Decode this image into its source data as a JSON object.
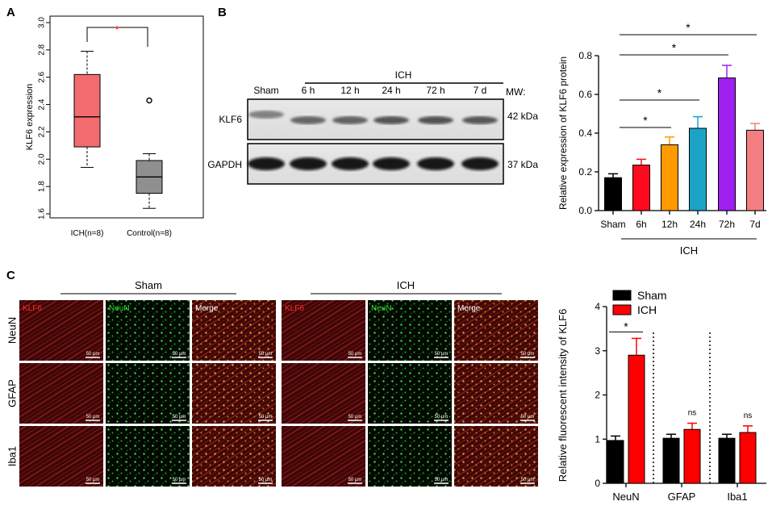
{
  "panels": {
    "a": "A",
    "b": "B",
    "c": "C"
  },
  "chart_data": [
    {
      "panel": "A",
      "type": "box",
      "ylabel": "KLF6 expression",
      "ylim": [
        1.6,
        3.0
      ],
      "yticks": [
        "1.6",
        "1.8",
        "2.0",
        "2.2",
        "2.4",
        "2.6",
        "2.8",
        "3.0"
      ],
      "categories": [
        "ICH(n=8)",
        "Control(n=8)"
      ],
      "boxes": [
        {
          "name": "ICH(n=8)",
          "color": "#f26b6e",
          "min": 1.94,
          "q1": 2.09,
          "median": 2.31,
          "q3": 2.62,
          "max": 2.79,
          "outliers": []
        },
        {
          "name": "Control(n=8)",
          "color": "#8f8f8f",
          "min": 1.64,
          "q1": 1.75,
          "median": 1.87,
          "q3": 1.99,
          "max": 2.04,
          "outliers": [
            2.43
          ]
        }
      ],
      "significance": "*",
      "significance_color": "#ff0000"
    },
    {
      "panel": "B-blot",
      "type": "western_blot",
      "group_label": "ICH",
      "lanes": [
        "Sham",
        "6 h",
        "12 h",
        "24 h",
        "72 h",
        "7 d"
      ],
      "mw_label": "MW:",
      "rows": [
        {
          "name": "KLF6",
          "mw": "42 kDa"
        },
        {
          "name": "GAPDH",
          "mw": "37 kDa"
        }
      ]
    },
    {
      "panel": "B",
      "type": "bar",
      "ylabel": "Relative expression of KLF6 protein",
      "ylim": [
        0,
        0.8
      ],
      "yticks": [
        "0.0",
        "0.2",
        "0.4",
        "0.6",
        "0.8"
      ],
      "categories": [
        "Sham",
        "6h",
        "12h",
        "24h",
        "72h",
        "7d"
      ],
      "values": [
        0.17,
        0.235,
        0.34,
        0.425,
        0.685,
        0.415
      ],
      "errors": [
        0.02,
        0.03,
        0.04,
        0.06,
        0.065,
        0.035
      ],
      "colors": [
        "#000000",
        "#ff0a1e",
        "#ff9900",
        "#1ba3c7",
        "#a020f0",
        "#f47e81"
      ],
      "group_label": "ICH",
      "significance": [
        {
          "from": 0,
          "to": 2,
          "label": "*"
        },
        {
          "from": 0,
          "to": 3,
          "label": "*"
        },
        {
          "from": 0,
          "to": 4,
          "label": "*"
        },
        {
          "from": 0,
          "to": 5,
          "label": "*"
        }
      ]
    },
    {
      "panel": "C-images",
      "type": "micrograph_grid",
      "groups": [
        "Sham",
        "ICH"
      ],
      "rows": [
        "NeuN",
        "GFAP",
        "Iba1"
      ],
      "channels": [
        "KLF6",
        "NeuN",
        "Merge"
      ],
      "scale_bar": "50 μm"
    },
    {
      "panel": "C",
      "type": "bar",
      "ylabel": "Relative fluorescent intensity of KLF6",
      "ylim": [
        0,
        4
      ],
      "yticks": [
        "0",
        "1",
        "2",
        "3",
        "4"
      ],
      "categories": [
        "NeuN",
        "GFAP",
        "Iba1"
      ],
      "series": [
        {
          "name": "Sham",
          "color": "#000000",
          "values": [
            0.97,
            1.02,
            1.02
          ],
          "errors": [
            0.1,
            0.09,
            0.09
          ]
        },
        {
          "name": "ICH",
          "color": "#ff0000",
          "values": [
            2.9,
            1.22,
            1.15
          ],
          "errors": [
            0.38,
            0.14,
            0.15
          ]
        }
      ],
      "significance": [
        "*",
        "ns",
        "ns"
      ],
      "legend_position": "top-left"
    }
  ]
}
